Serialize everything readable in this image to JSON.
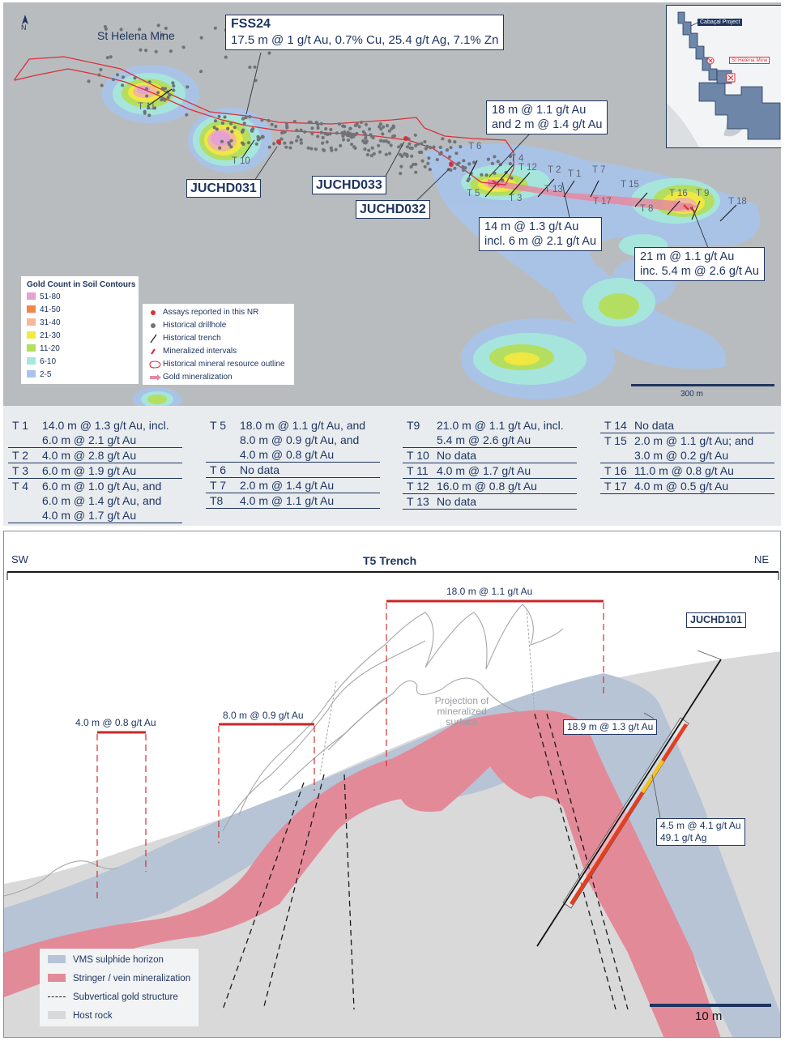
{
  "map": {
    "north_label": "N",
    "mine_label": "St Helena Mine",
    "fss_callout": {
      "title": "FSS24",
      "text": "17.5 m @ 1 g/t Au, 0.7% Cu, 25.4 g/t Ag, 7.1% Zn"
    },
    "callouts": [
      {
        "line1": "18 m @ 1.1 g/t Au",
        "line2": "and 2 m @ 1.4 g/t Au"
      },
      {
        "line1": "14 m @ 1.3 g/t Au",
        "line2": "incl. 6 m @ 2.1 g/t Au"
      },
      {
        "line1": "21 m @ 1.1 g/t Au",
        "line2": "inc. 5.4 m @ 2.6 g/t Au"
      }
    ],
    "drillholes": [
      "JUCHD031",
      "JUCHD033",
      "JUCHD032"
    ],
    "trench_labels": [
      "T 11",
      "T 10",
      "T 6",
      "T 4",
      "T 12",
      "T 2",
      "T 1",
      "T 7",
      "T 5",
      "T 13",
      "T 3",
      "T 17",
      "T 15",
      "T 8",
      "T 16",
      "T 9",
      "T 18"
    ],
    "soil_legend": {
      "title": "Gold Count in Soil Contours",
      "items": [
        {
          "label": "51-80",
          "color": "#e7a0d2"
        },
        {
          "label": "41-50",
          "color": "#f0864a"
        },
        {
          "label": "31-40",
          "color": "#f3b99a"
        },
        {
          "label": "21-30",
          "color": "#f2ea3c"
        },
        {
          "label": "11-20",
          "color": "#b4e05a"
        },
        {
          "label": "6-10",
          "color": "#a6e8de"
        },
        {
          "label": "2-5",
          "color": "#a9c4ea"
        }
      ]
    },
    "symbol_legend": [
      {
        "label": "Assays reported in this NR",
        "icon": "red-dot"
      },
      {
        "label": "Historical drillhole",
        "icon": "grey-dot"
      },
      {
        "label": "Historical trench",
        "icon": "black-line"
      },
      {
        "label": "Mineralized intervals",
        "icon": "red-tick"
      },
      {
        "label": "Historical mineral resource outline",
        "icon": "red-outline"
      },
      {
        "label": "Gold mineralization",
        "icon": "pink-arrow"
      }
    ],
    "scale_label": "300 m",
    "inset": {
      "project_label": "Cabaçal Project",
      "mine_label": "St Helena Mine"
    }
  },
  "trench_table": {
    "columns": [
      [
        {
          "id": "T 1",
          "value": "14.0 m @ 1.3 g/t Au, incl.\n6.0 m @ 2.1 g/t Au"
        },
        {
          "id": "T 2",
          "value": "4.0 m @ 2.8 g/t Au"
        },
        {
          "id": "T 3",
          "value": "6.0 m @ 1.9 g/t Au"
        },
        {
          "id": "T 4",
          "value": "6.0 m @ 1.0 g/t Au, and\n6.0 m @ 1.4 g/t Au, and\n4.0 m @ 1.7 g/t Au"
        }
      ],
      [
        {
          "id": "T 5",
          "value": "18.0 m @ 1.1 g/t Au, and\n8.0 m @ 0.9 g/t Au, and\n4.0 m @ 0.8 g/t Au"
        },
        {
          "id": "T 6",
          "value": "No data"
        },
        {
          "id": "T 7",
          "value": "2.0 m @ 1.4 g/t Au"
        },
        {
          "id": "T8",
          "value": "4.0 m @ 1.1 g/t Au"
        }
      ],
      [
        {
          "id": "T9",
          "value": "21.0 m @ 1.1 g/t Au, incl.\n5.4 m @ 2.6 g/t Au"
        },
        {
          "id": "T 10",
          "value": "No data"
        },
        {
          "id": "T 11",
          "value": "4.0 m @ 1.7 g/t Au"
        },
        {
          "id": "T 12",
          "value": "16.0 m @ 0.8 g/t Au"
        },
        {
          "id": "T 13",
          "value": "No data"
        }
      ],
      [
        {
          "id": "T 14",
          "value": "No data"
        },
        {
          "id": "T 15",
          "value": "2.0 m @ 1.1 g/t Au; and\n3.0 m @ 0.2 g/t Au"
        },
        {
          "id": "T 16",
          "value": "11.0 m  @ 0.8 g/t Au"
        },
        {
          "id": "T 17",
          "value": "4.0 m  @ 0.5 g/t Au"
        }
      ]
    ]
  },
  "section": {
    "title": "T5 Trench",
    "left_dir": "SW",
    "right_dir": "NE",
    "intervals": [
      "4.0 m @ 0.8 g/t Au",
      "8.0 m @ 0.9 g/t Au",
      "18.0 m @ 1.1 g/t Au"
    ],
    "projection_label": "Projection of\nmineralized\nsurface",
    "hole_label": "JUCHD101",
    "hole_intervals": [
      "18.9 m @ 1.3 g/t Au",
      "4.5 m @ 4.1 g/t Au\n49.1 g/t Ag"
    ],
    "legend": [
      {
        "label": "VMS sulphide horizon",
        "color": "#b7c4d6"
      },
      {
        "label": "Stringer / vein mineralization",
        "color": "#e38a98"
      },
      {
        "label": "Subvertical gold structure",
        "color": "dashed"
      },
      {
        "label": "Host rock",
        "color": "#d9d9d9"
      }
    ],
    "scale_label": "10  m"
  }
}
